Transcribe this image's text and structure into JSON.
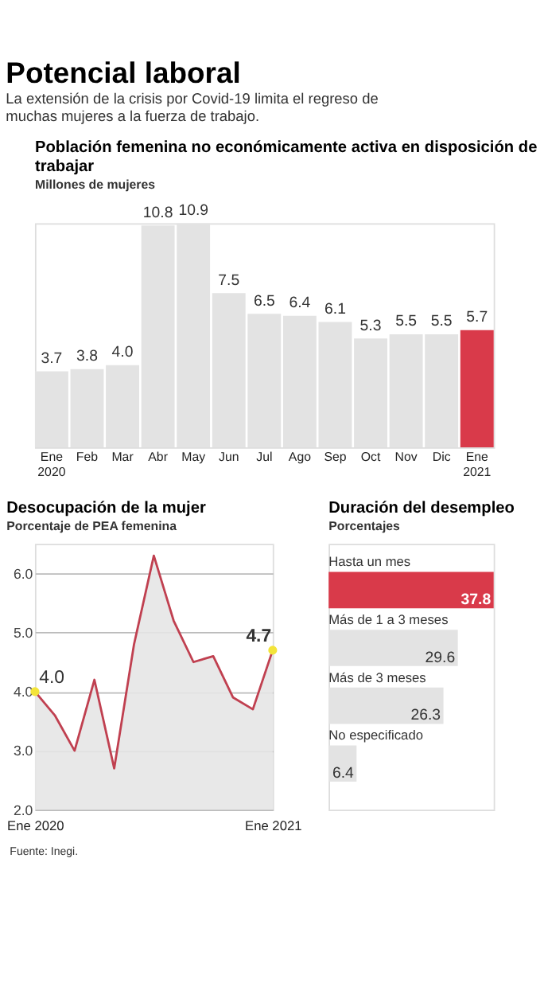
{
  "chart_data": [
    {
      "type": "other",
      "title": "Potencial laboral",
      "subtitle": "La extensión de la crisis por Covid-19 limita el regreso de muchas mujeres a la fuerza de trabajo."
    },
    {
      "type": "bar",
      "title": "Población femenina no económicamente activa en disposición de trabajar",
      "subtitle": "Millones de mujeres",
      "categories": [
        "Ene 2020",
        "Feb",
        "Mar",
        "Abr",
        "May",
        "Jun",
        "Jul",
        "Ago",
        "Sep",
        "Oct",
        "Nov",
        "Dic",
        "Ene 2021"
      ],
      "values": [
        3.7,
        3.8,
        4.0,
        10.8,
        10.9,
        7.5,
        6.5,
        6.4,
        6.1,
        5.3,
        5.5,
        5.5,
        5.7
      ],
      "colors": [
        "#e3e3e3",
        "#e3e3e3",
        "#e3e3e3",
        "#e3e3e3",
        "#e3e3e3",
        "#e3e3e3",
        "#e3e3e3",
        "#e3e3e3",
        "#e3e3e3",
        "#e3e3e3",
        "#e3e3e3",
        "#e3e3e3",
        "#d93a4a"
      ],
      "value_labels": [
        "3.7",
        "3.8",
        "4.0",
        "10.8",
        "10.9",
        "7.5",
        "6.5",
        "6.4",
        "6.1",
        "5.3",
        "5.5",
        "5.5",
        "5.7"
      ],
      "tick_labels": "x"
    },
    {
      "type": "area",
      "title": "Desocupación de la mujer",
      "subtitle": "Porcentaje de PEA femenina",
      "categories": [
        "Ene 2020",
        null,
        null,
        null,
        null,
        null,
        null,
        null,
        null,
        null,
        null,
        null,
        "Ene 2021"
      ],
      "series": [
        {
          "color": "#c04050",
          "values": [
            4.0,
            3.6,
            3.0,
            4.2,
            2.7,
            4.8,
            6.3,
            5.2,
            4.5,
            4.6,
            3.9,
            3.7,
            4.7
          ],
          "value_labels": [
            "4.0",
            null,
            null,
            null,
            null,
            null,
            null,
            null,
            null,
            null,
            null,
            null,
            "4.7"
          ]
        }
      ],
      "ylim": [
        2,
        6.5
      ],
      "yticks": [
        {
          "value": 2,
          "label": "2.0"
        },
        {
          "value": 3,
          "label": "3.0"
        },
        {
          "value": 4,
          "label": "4.0"
        },
        {
          "value": 5,
          "label": "5.0"
        },
        {
          "value": 6,
          "label": "6.0"
        }
      ],
      "grid": "y",
      "annotations": [
        "Fuente: Inegi."
      ]
    },
    {
      "type": "bar",
      "orientation": "horizontal",
      "title": "Duración del desempleo",
      "subtitle": "Porcentajes",
      "categories": [
        "Hasta un mes",
        "Más de 1 a 3 meses",
        "Más de 3 meses",
        "No especificado"
      ],
      "values": [
        37.8,
        29.6,
        26.3,
        6.4
      ],
      "colors": [
        "#d93a4a",
        "#e3e3e3",
        "#e3e3e3",
        "#e3e3e3"
      ],
      "data_labels": true,
      "tick_labels": "y"
    }
  ]
}
